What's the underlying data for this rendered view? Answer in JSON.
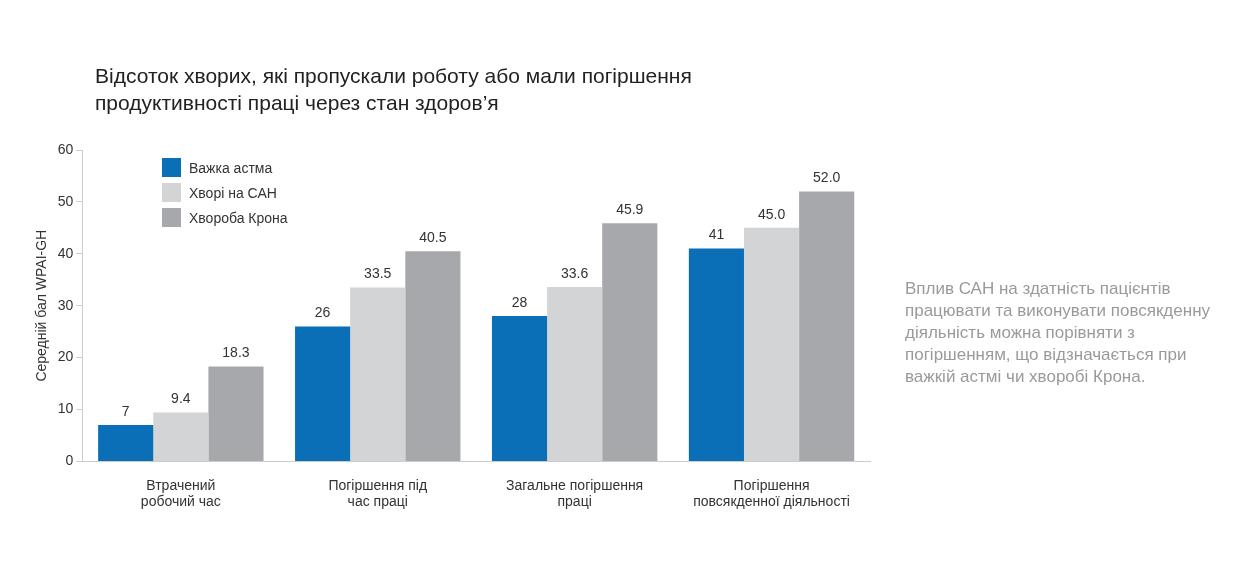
{
  "chart_data": {
    "type": "bar",
    "title": "Відсоток хворих, які пропускали роботу або мали погіршення продуктивності праці через стан здоров’я",
    "ylabel": "Середній бал WPAI-GH",
    "categories": [
      "Втрачений\nробочий час",
      "Погіршення під\nчас праці",
      "Загальне погіршення\nпраці",
      "Погіршення\nповсякденної діяльності"
    ],
    "series": [
      {
        "name": "Важка астма",
        "color": "#0a6fb7",
        "values": [
          7,
          26,
          28,
          41
        ],
        "value_labels": [
          "7",
          "26",
          "28",
          "41"
        ]
      },
      {
        "name": "Хворі на САН",
        "color": "#d3d4d6",
        "values": [
          9.4,
          33.5,
          33.6,
          45.0
        ],
        "value_labels": [
          "9.4",
          "33.5",
          "33.6",
          "45.0"
        ]
      },
      {
        "name": "Хвороба Крона",
        "color": "#a7a8ac",
        "values": [
          18.3,
          40.5,
          45.9,
          52.0
        ],
        "value_labels": [
          "18.3",
          "40.5",
          "45.9",
          "52.0"
        ]
      }
    ],
    "ylim": [
      0,
      60
    ],
    "yticks": [
      0,
      10,
      20,
      30,
      40,
      50,
      60
    ],
    "legend": "top left",
    "annotations": [
      "Вплив САН на здатність пацієнтів працювати та виконувати повсякденну діяльність можна порівняти з погіршенням, що відзначається при важкій астмі чи хворобі Крона."
    ]
  }
}
